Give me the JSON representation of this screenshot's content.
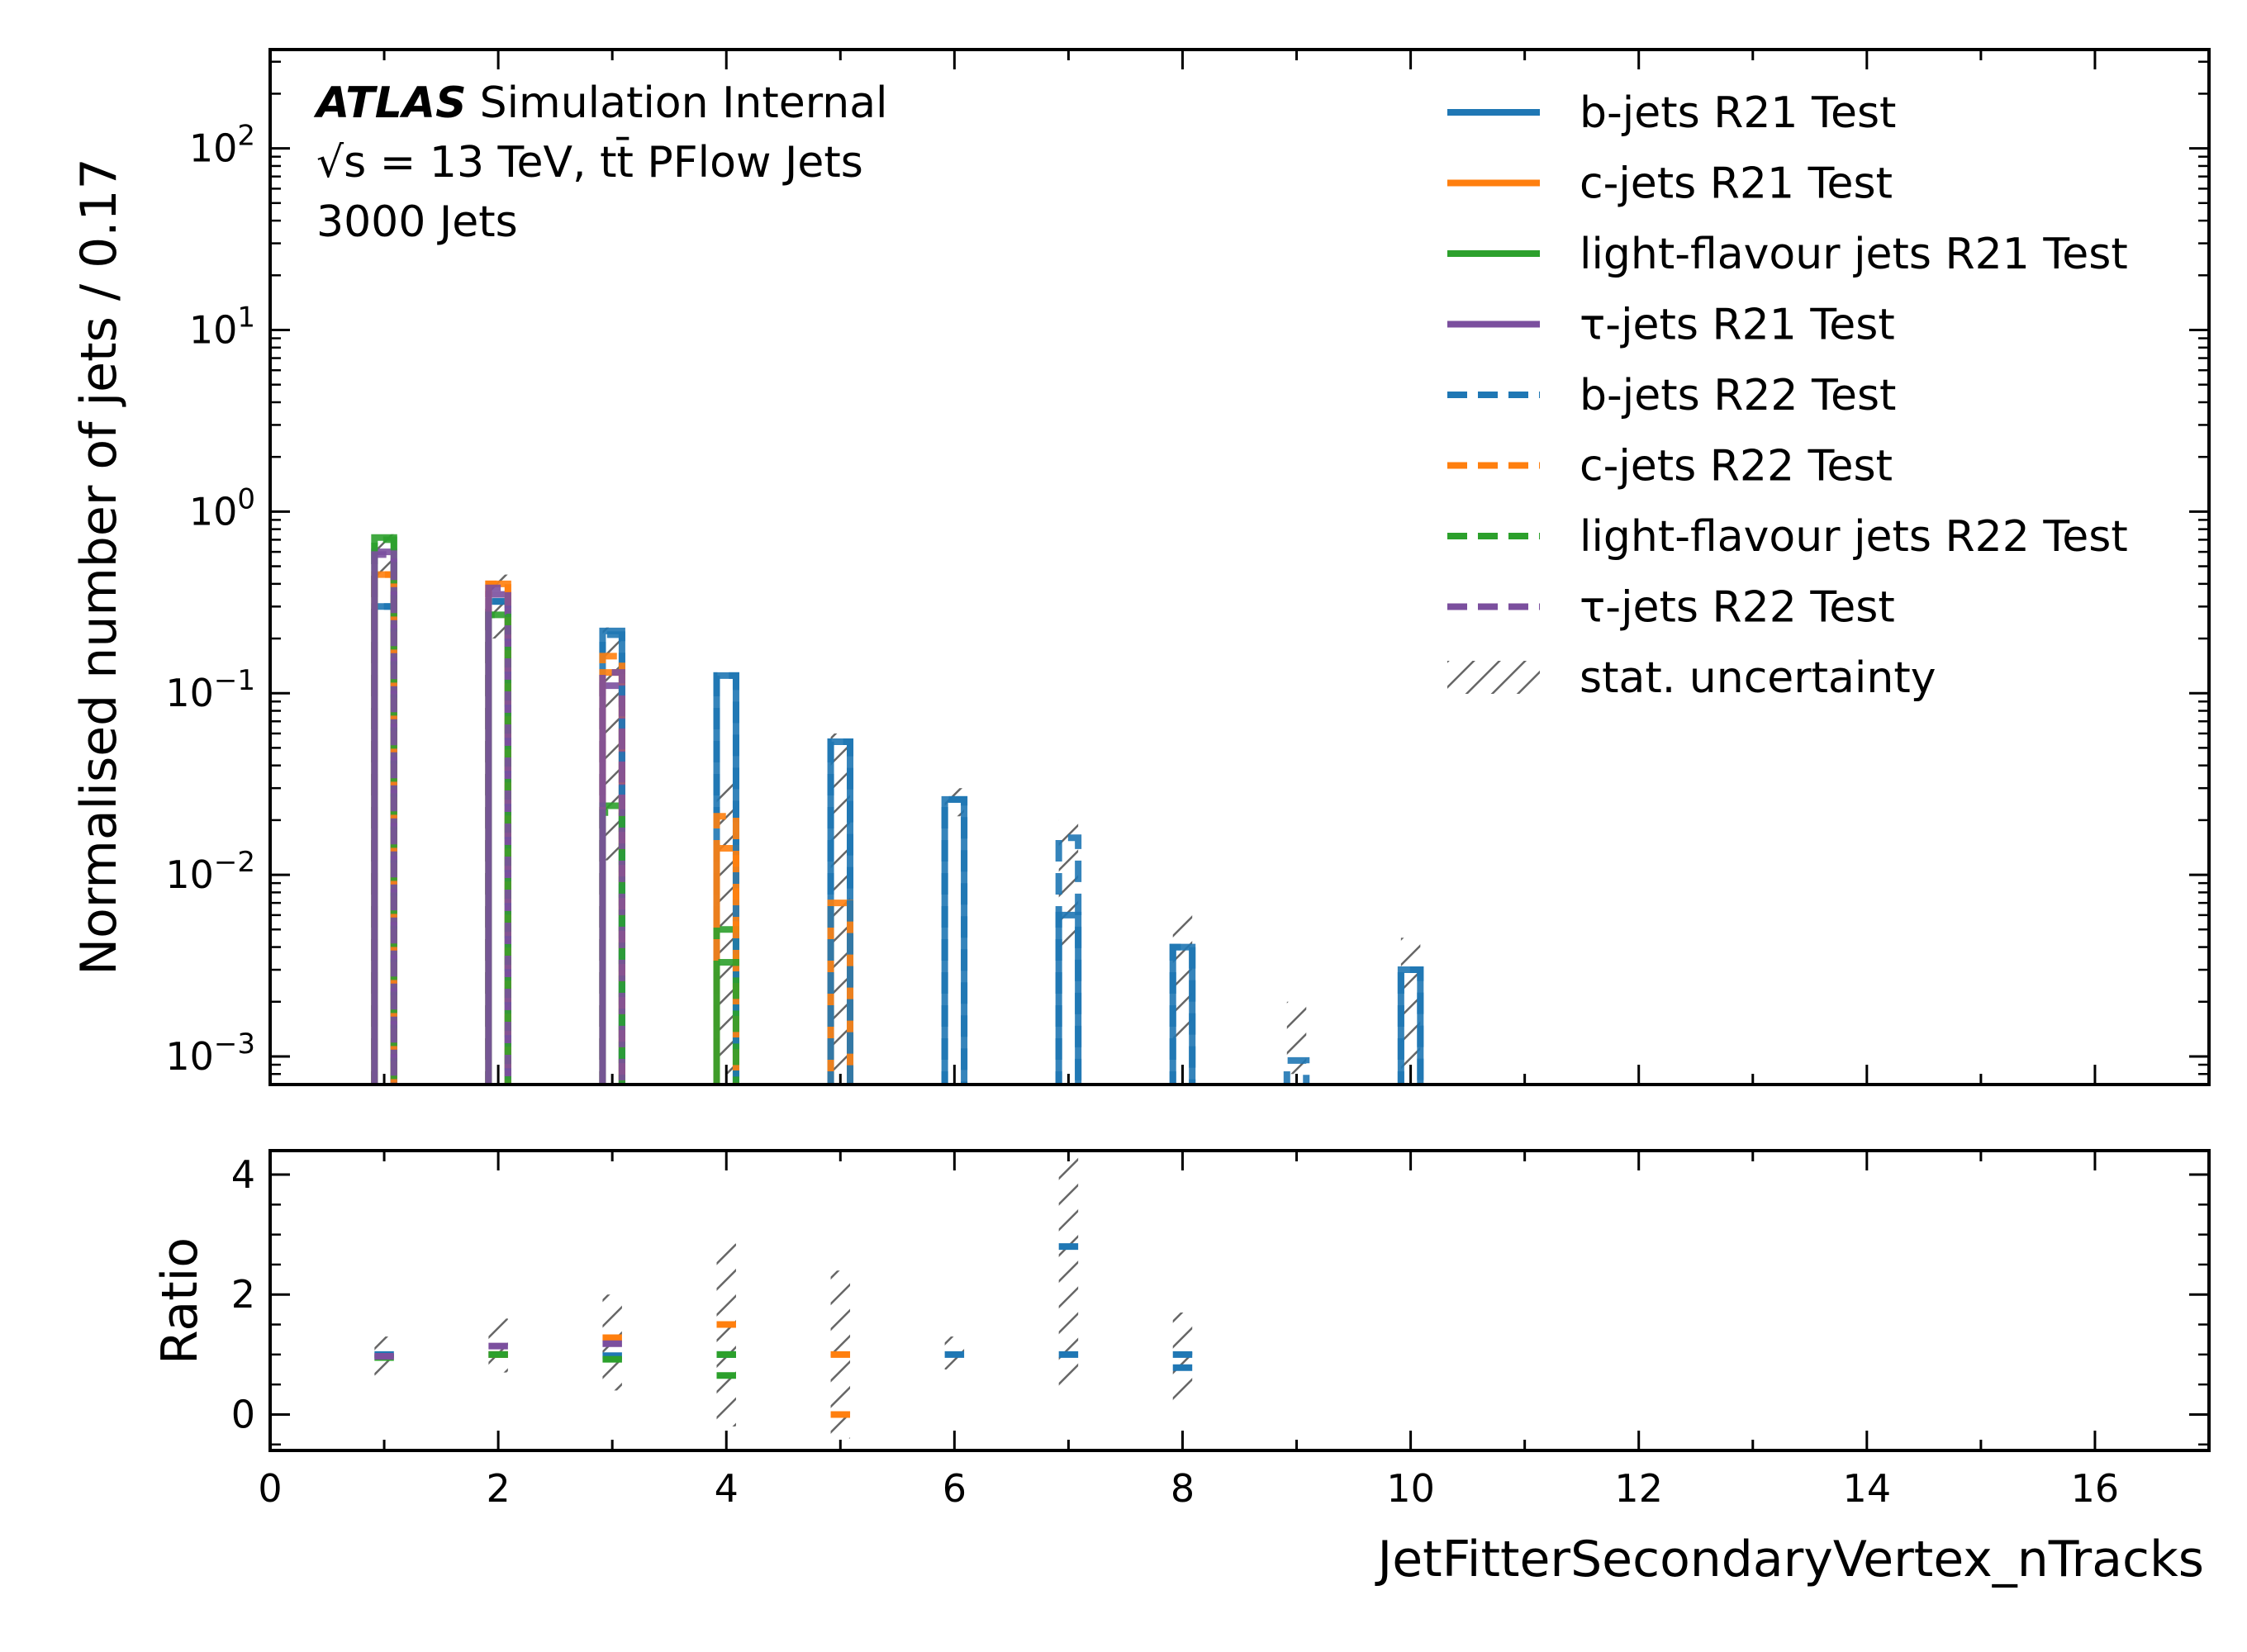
{
  "atlas": {
    "experiment": "ATLAS",
    "status": "Simulation Internal",
    "energy_line": "√s = 13 TeV, tt̄ PFlow Jets",
    "jets_line": "3000 Jets"
  },
  "colors": {
    "b": "#1f77b4",
    "c": "#ff7f0e",
    "light": "#2ca02c",
    "tau": "#7b4f9e",
    "unc": "#666666"
  },
  "legend": [
    {
      "label": "b-jets R21 Test",
      "color": "b",
      "style": "solid"
    },
    {
      "label": "c-jets R21 Test",
      "color": "c",
      "style": "solid"
    },
    {
      "label": "light-flavour jets R21 Test",
      "color": "light",
      "style": "solid"
    },
    {
      "label": "τ-jets R21 Test",
      "color": "tau",
      "style": "solid"
    },
    {
      "label": "b-jets R22 Test",
      "color": "b",
      "style": "dashed"
    },
    {
      "label": "c-jets R22 Test",
      "color": "c",
      "style": "dashed"
    },
    {
      "label": "light-flavour jets R22 Test",
      "color": "light",
      "style": "dashed"
    },
    {
      "label": "τ-jets R22 Test",
      "color": "tau",
      "style": "dashed"
    },
    {
      "label": "stat. uncertainty",
      "color": "unc",
      "style": "hatch"
    }
  ],
  "chart_data": {
    "type": "histogram",
    "x_label": "JetFitterSecondaryVertex_nTracks",
    "xlim": [
      0,
      17
    ],
    "x_ticks": [
      0,
      2,
      4,
      6,
      8,
      10,
      12,
      14,
      16
    ],
    "bin_width": 0.17,
    "main_panel": {
      "y_label": "Normalised number of jets / 0.17",
      "y_scale": "log",
      "ylim": [
        0.0007,
        350
      ],
      "y_tick_labels": [
        {
          "mantissa": "10",
          "exp": "−3",
          "value": 0.001
        },
        {
          "mantissa": "10",
          "exp": "−2",
          "value": 0.01
        },
        {
          "mantissa": "10",
          "exp": "−1",
          "value": 0.1
        },
        {
          "mantissa": "10",
          "exp": "0",
          "value": 1
        },
        {
          "mantissa": "10",
          "exp": "1",
          "value": 10
        },
        {
          "mantissa": "10",
          "exp": "2",
          "value": 100
        }
      ],
      "series": [
        {
          "name": "b-jets R21 Test",
          "flavour": "b",
          "style": "solid",
          "bins": [
            [
              1,
              0.3
            ],
            [
              2,
              0.32
            ],
            [
              3,
              0.22
            ],
            [
              4,
              0.125
            ],
            [
              5,
              0.054
            ],
            [
              6,
              0.026
            ],
            [
              7,
              0.006
            ],
            [
              8,
              0.004
            ],
            [
              10,
              0.003
            ]
          ]
        },
        {
          "name": "c-jets R21 Test",
          "flavour": "c",
          "style": "solid",
          "bins": [
            [
              1,
              0.45
            ],
            [
              2,
              0.4
            ],
            [
              3,
              0.13
            ],
            [
              4,
              0.014
            ],
            [
              5,
              0.007
            ]
          ]
        },
        {
          "name": "light-flavour jets R21 Test",
          "flavour": "light",
          "style": "solid",
          "bins": [
            [
              1,
              0.72
            ],
            [
              2,
              0.27
            ],
            [
              3,
              0.024
            ],
            [
              4,
              0.005
            ]
          ]
        },
        {
          "name": "τ-jets R21 Test",
          "flavour": "tau",
          "style": "solid",
          "bins": [
            [
              1,
              0.6
            ],
            [
              2,
              0.35
            ],
            [
              3,
              0.11
            ]
          ]
        },
        {
          "name": "b-jets R22 Test",
          "flavour": "b",
          "style": "dashed",
          "bins": [
            [
              1,
              0.3
            ],
            [
              2,
              0.32
            ],
            [
              3,
              0.21
            ],
            [
              4,
              0.125
            ],
            [
              5,
              0.054
            ],
            [
              6,
              0.026
            ],
            [
              7,
              0.016
            ],
            [
              8,
              0.004
            ],
            [
              9,
              0.00095
            ],
            [
              10,
              0.003
            ]
          ]
        },
        {
          "name": "c-jets R22 Test",
          "flavour": "c",
          "style": "dashed",
          "bins": [
            [
              1,
              0.45
            ],
            [
              2,
              0.4
            ],
            [
              3,
              0.16
            ],
            [
              4,
              0.021
            ]
          ]
        },
        {
          "name": "light-flavour jets R22 Test",
          "flavour": "light",
          "style": "dashed",
          "bins": [
            [
              1,
              0.7
            ],
            [
              2,
              0.27
            ],
            [
              3,
              0.022
            ],
            [
              4,
              0.0033
            ]
          ]
        },
        {
          "name": "τ-jets R22 Test",
          "flavour": "tau",
          "style": "dashed",
          "bins": [
            [
              1,
              0.58
            ],
            [
              2,
              0.38
            ],
            [
              3,
              0.13
            ]
          ]
        }
      ],
      "stat_uncertainty": [
        [
          1,
          0.4,
          0.75
        ],
        [
          2,
          0.2,
          0.45
        ],
        [
          3,
          0.012,
          0.23
        ],
        [
          4,
          0.0008,
          0.035
        ],
        [
          5,
          0.0008,
          0.06
        ],
        [
          6,
          0.021,
          0.03
        ],
        [
          7,
          0.004,
          0.02
        ],
        [
          8,
          0.0012,
          0.006
        ],
        [
          9,
          0.0008,
          0.002
        ],
        [
          10,
          0.0008,
          0.0045
        ]
      ]
    },
    "ratio_panel": {
      "y_label": "Ratio",
      "ylim": [
        -0.6,
        4.4
      ],
      "y_ticks": [
        0,
        2,
        4
      ],
      "ratios": [
        {
          "flavour": "b",
          "points": [
            [
              1,
              1.0
            ],
            [
              2,
              1.0
            ],
            [
              3,
              0.98
            ],
            [
              4,
              1.0
            ],
            [
              6,
              1.0
            ],
            [
              7,
              2.8
            ],
            [
              7,
              1.0
            ],
            [
              8,
              1.0
            ],
            [
              8,
              0.78
            ]
          ]
        },
        {
          "flavour": "c",
          "points": [
            [
              2,
              1.0
            ],
            [
              3,
              1.28
            ],
            [
              4,
              1.5
            ],
            [
              5,
              1.0
            ],
            [
              5,
              0.0
            ]
          ]
        },
        {
          "flavour": "light",
          "points": [
            [
              1,
              0.95
            ],
            [
              2,
              1.0
            ],
            [
              3,
              0.92
            ],
            [
              4,
              1.0
            ],
            [
              4,
              0.65
            ]
          ]
        },
        {
          "flavour": "tau",
          "points": [
            [
              1,
              0.97
            ],
            [
              2,
              1.14
            ],
            [
              3,
              1.18
            ]
          ]
        }
      ],
      "stat_uncertainty": [
        [
          1,
          0.65,
          1.3
        ],
        [
          2,
          0.7,
          1.6
        ],
        [
          3,
          0.4,
          2.0
        ],
        [
          4,
          -0.2,
          2.85
        ],
        [
          5,
          -0.4,
          2.4
        ],
        [
          6,
          0.75,
          1.3
        ],
        [
          7,
          0.45,
          4.3
        ],
        [
          8,
          0.2,
          1.7
        ]
      ]
    }
  }
}
